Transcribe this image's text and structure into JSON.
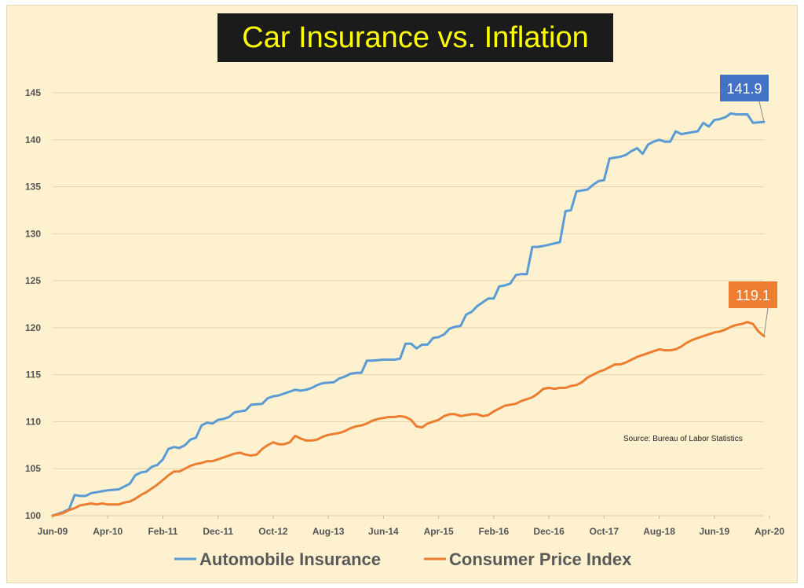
{
  "chart_data": {
    "type": "line",
    "title": "Car Insurance vs. Inflation",
    "xlabel": "",
    "ylabel": "",
    "ylim": [
      100,
      145
    ],
    "yticks": [
      100,
      105,
      110,
      115,
      120,
      125,
      130,
      135,
      140,
      145
    ],
    "xticks": [
      "Jun-09",
      "Apr-10",
      "Feb-11",
      "Dec-11",
      "Oct-12",
      "Aug-13",
      "Jun-14",
      "Apr-15",
      "Feb-16",
      "Dec-16",
      "Oct-17",
      "Aug-18",
      "Jun-19",
      "Apr-20"
    ],
    "grid": true,
    "legend_position": "bottom",
    "source": "Source: Bureau of Labor Statistics",
    "series": [
      {
        "name": "Automobile Insurance",
        "color": "#5b9bd5",
        "end_label": "141.9",
        "points": [
          [
            0,
            100.0
          ],
          [
            2,
            100.4
          ],
          [
            3,
            100.7
          ],
          [
            4,
            102.2
          ],
          [
            5,
            102.1
          ],
          [
            6,
            102.1
          ],
          [
            7,
            102.4
          ],
          [
            9,
            102.6
          ],
          [
            10,
            102.7
          ],
          [
            12,
            102.8
          ],
          [
            13,
            103.1
          ],
          [
            14,
            103.4
          ],
          [
            15,
            104.3
          ],
          [
            16,
            104.6
          ],
          [
            17,
            104.7
          ],
          [
            18,
            105.2
          ],
          [
            19,
            105.4
          ],
          [
            20,
            106.0
          ],
          [
            21,
            107.1
          ],
          [
            22,
            107.3
          ],
          [
            23,
            107.2
          ],
          [
            24,
            107.5
          ],
          [
            25,
            108.1
          ],
          [
            26,
            108.3
          ],
          [
            27,
            109.6
          ],
          [
            28,
            109.9
          ],
          [
            29,
            109.8
          ],
          [
            30,
            110.2
          ],
          [
            31,
            110.3
          ],
          [
            32,
            110.5
          ],
          [
            33,
            111.0
          ],
          [
            34,
            111.1
          ],
          [
            35,
            111.2
          ],
          [
            36,
            111.8
          ],
          [
            38,
            111.9
          ],
          [
            39,
            112.5
          ],
          [
            40,
            112.7
          ],
          [
            41,
            112.8
          ],
          [
            42,
            113.0
          ],
          [
            43,
            113.2
          ],
          [
            44,
            113.4
          ],
          [
            45,
            113.3
          ],
          [
            46,
            113.4
          ],
          [
            47,
            113.6
          ],
          [
            48,
            113.9
          ],
          [
            49,
            114.1
          ],
          [
            51,
            114.2
          ],
          [
            52,
            114.6
          ],
          [
            53,
            114.8
          ],
          [
            54,
            115.1
          ],
          [
            55,
            115.2
          ],
          [
            56,
            115.2
          ],
          [
            57,
            116.5
          ],
          [
            58,
            116.5
          ],
          [
            60,
            116.6
          ],
          [
            62,
            116.6
          ],
          [
            63,
            116.7
          ],
          [
            64,
            118.3
          ],
          [
            65,
            118.3
          ],
          [
            66,
            117.8
          ],
          [
            67,
            118.2
          ],
          [
            68,
            118.2
          ],
          [
            69,
            118.9
          ],
          [
            70,
            119.0
          ],
          [
            71,
            119.3
          ],
          [
            72,
            119.9
          ],
          [
            73,
            120.1
          ],
          [
            74,
            120.2
          ],
          [
            75,
            121.4
          ],
          [
            76,
            121.7
          ],
          [
            77,
            122.3
          ],
          [
            78,
            122.7
          ],
          [
            79,
            123.1
          ],
          [
            80,
            123.1
          ],
          [
            81,
            124.4
          ],
          [
            82,
            124.5
          ],
          [
            83,
            124.7
          ],
          [
            84,
            125.6
          ],
          [
            85,
            125.7
          ],
          [
            86,
            125.7
          ],
          [
            87,
            128.6
          ],
          [
            88,
            128.6
          ],
          [
            89,
            128.7
          ],
          [
            92,
            129.1
          ],
          [
            93,
            132.4
          ],
          [
            94,
            132.5
          ],
          [
            95,
            134.5
          ],
          [
            96,
            134.6
          ],
          [
            97,
            134.7
          ],
          [
            98,
            135.2
          ],
          [
            99,
            135.6
          ],
          [
            100,
            135.7
          ],
          [
            101,
            138.0
          ],
          [
            102,
            138.1
          ],
          [
            103,
            138.2
          ],
          [
            104,
            138.4
          ],
          [
            105,
            138.8
          ],
          [
            106,
            139.1
          ],
          [
            107,
            138.5
          ],
          [
            108,
            139.5
          ],
          [
            109,
            139.8
          ],
          [
            110,
            140.0
          ],
          [
            111,
            139.8
          ],
          [
            112,
            139.8
          ],
          [
            113,
            140.9
          ],
          [
            114,
            140.6
          ],
          [
            115,
            140.7
          ],
          [
            117,
            140.9
          ],
          [
            118,
            141.8
          ],
          [
            119,
            141.4
          ],
          [
            120,
            142.1
          ],
          [
            121,
            142.2
          ],
          [
            122,
            142.4
          ],
          [
            123,
            142.8
          ],
          [
            124,
            142.7
          ],
          [
            125,
            142.7
          ],
          [
            126,
            142.7
          ],
          [
            127,
            141.8
          ],
          [
            129,
            141.9
          ]
        ]
      },
      {
        "name": "Consumer Price Index",
        "color": "#ed7d31",
        "end_label": "119.1",
        "points": [
          [
            0,
            100.0
          ],
          [
            2,
            100.3
          ],
          [
            3,
            100.6
          ],
          [
            4,
            100.8
          ],
          [
            5,
            101.1
          ],
          [
            6,
            101.2
          ],
          [
            7,
            101.3
          ],
          [
            8,
            101.2
          ],
          [
            9,
            101.3
          ],
          [
            10,
            101.2
          ],
          [
            12,
            101.2
          ],
          [
            13,
            101.4
          ],
          [
            14,
            101.5
          ],
          [
            15,
            101.8
          ],
          [
            16,
            102.2
          ],
          [
            17,
            102.5
          ],
          [
            18,
            102.9
          ],
          [
            19,
            103.3
          ],
          [
            20,
            103.8
          ],
          [
            21,
            104.3
          ],
          [
            22,
            104.7
          ],
          [
            23,
            104.7
          ],
          [
            24,
            105.0
          ],
          [
            25,
            105.3
          ],
          [
            26,
            105.5
          ],
          [
            27,
            105.6
          ],
          [
            28,
            105.8
          ],
          [
            29,
            105.8
          ],
          [
            30,
            106.0
          ],
          [
            31,
            106.2
          ],
          [
            32,
            106.4
          ],
          [
            33,
            106.6
          ],
          [
            34,
            106.7
          ],
          [
            35,
            106.5
          ],
          [
            36,
            106.4
          ],
          [
            37,
            106.5
          ],
          [
            38,
            107.1
          ],
          [
            39,
            107.5
          ],
          [
            40,
            107.8
          ],
          [
            41,
            107.6
          ],
          [
            42,
            107.6
          ],
          [
            43,
            107.8
          ],
          [
            44,
            108.5
          ],
          [
            45,
            108.2
          ],
          [
            46,
            108.0
          ],
          [
            47,
            108.0
          ],
          [
            48,
            108.1
          ],
          [
            49,
            108.4
          ],
          [
            50,
            108.6
          ],
          [
            51,
            108.7
          ],
          [
            52,
            108.8
          ],
          [
            53,
            109.0
          ],
          [
            54,
            109.3
          ],
          [
            55,
            109.5
          ],
          [
            56,
            109.6
          ],
          [
            57,
            109.8
          ],
          [
            58,
            110.1
          ],
          [
            59,
            110.3
          ],
          [
            60,
            110.4
          ],
          [
            61,
            110.5
          ],
          [
            62,
            110.5
          ],
          [
            63,
            110.6
          ],
          [
            64,
            110.5
          ],
          [
            65,
            110.2
          ],
          [
            66,
            109.5
          ],
          [
            67,
            109.4
          ],
          [
            68,
            109.8
          ],
          [
            69,
            110.0
          ],
          [
            70,
            110.2
          ],
          [
            71,
            110.6
          ],
          [
            72,
            110.8
          ],
          [
            73,
            110.8
          ],
          [
            74,
            110.6
          ],
          [
            75,
            110.7
          ],
          [
            76,
            110.8
          ],
          [
            77,
            110.8
          ],
          [
            78,
            110.6
          ],
          [
            79,
            110.7
          ],
          [
            80,
            111.1
          ],
          [
            81,
            111.4
          ],
          [
            82,
            111.7
          ],
          [
            83,
            111.8
          ],
          [
            84,
            111.9
          ],
          [
            85,
            112.2
          ],
          [
            86,
            112.4
          ],
          [
            87,
            112.6
          ],
          [
            88,
            113.0
          ],
          [
            89,
            113.5
          ],
          [
            90,
            113.6
          ],
          [
            91,
            113.5
          ],
          [
            92,
            113.6
          ],
          [
            93,
            113.6
          ],
          [
            94,
            113.8
          ],
          [
            95,
            113.9
          ],
          [
            96,
            114.2
          ],
          [
            97,
            114.7
          ],
          [
            98,
            115.0
          ],
          [
            99,
            115.3
          ],
          [
            100,
            115.5
          ],
          [
            101,
            115.8
          ],
          [
            102,
            116.1
          ],
          [
            103,
            116.1
          ],
          [
            104,
            116.3
          ],
          [
            105,
            116.6
          ],
          [
            106,
            116.9
          ],
          [
            107,
            117.1
          ],
          [
            108,
            117.3
          ],
          [
            109,
            117.5
          ],
          [
            110,
            117.7
          ],
          [
            111,
            117.6
          ],
          [
            112,
            117.6
          ],
          [
            113,
            117.7
          ],
          [
            114,
            118.0
          ],
          [
            115,
            118.4
          ],
          [
            116,
            118.7
          ],
          [
            117,
            118.9
          ],
          [
            118,
            119.1
          ],
          [
            119,
            119.3
          ],
          [
            120,
            119.5
          ],
          [
            121,
            119.6
          ],
          [
            122,
            119.8
          ],
          [
            123,
            120.1
          ],
          [
            124,
            120.3
          ],
          [
            125,
            120.4
          ],
          [
            126,
            120.6
          ],
          [
            127,
            120.4
          ],
          [
            128,
            119.6
          ],
          [
            129,
            119.1
          ]
        ]
      }
    ]
  }
}
